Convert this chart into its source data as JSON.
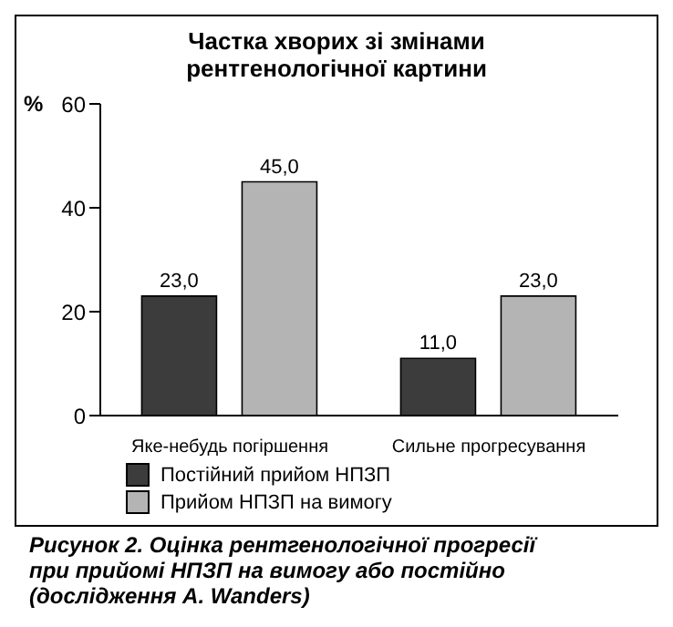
{
  "chart_data": {
    "type": "bar",
    "title": "Частка хворих зі змінами рентгенологічної картини",
    "ylabel": "%",
    "categories": [
      "Яке-небудь погіршення",
      "Сильне прогресування"
    ],
    "series": [
      {
        "name": "Постійний прийом НПЗП",
        "color": "#3c3c3c",
        "values": [
          23.0,
          11.0
        ],
        "value_labels": [
          "23,0",
          "11,0"
        ]
      },
      {
        "name": "Прийом НПЗП на вимогу",
        "color": "#b4b4b4",
        "values": [
          45.0,
          23.0
        ],
        "value_labels": [
          "45,0",
          "23,0"
        ]
      }
    ],
    "ylim": [
      0,
      60
    ],
    "yticks": [
      0,
      20,
      40,
      60
    ],
    "grid": false,
    "legend": "bottom left",
    "annotations": [
      "Рисунок 2. Оцінка рентгенологічної прогресії при прийомі НПЗП на вимогу або постійно (дослідження A. Wanders)"
    ]
  }
}
